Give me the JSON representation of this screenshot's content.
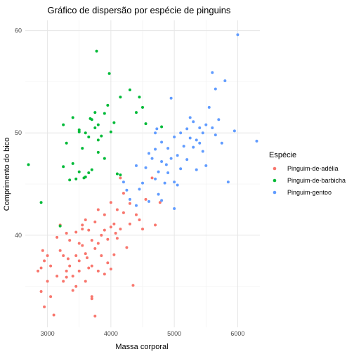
{
  "chart_data": {
    "type": "scatter",
    "title": "Gráfico de dispersão por espécie de pinguins",
    "xlabel": "Massa corporal",
    "ylabel": "Comprimento do bico",
    "xlim": [
      2650,
      6350
    ],
    "ylim": [
      31,
      61
    ],
    "x_ticks": [
      3000,
      4000,
      5000,
      6000
    ],
    "y_ticks": [
      40,
      50,
      60
    ],
    "grid": true,
    "legend": {
      "title": "Espécie",
      "placement": "right"
    },
    "series": [
      {
        "name": "Pinguim-de-adélia",
        "color": "#F8766D",
        "points": [
          [
            2850,
            36.5
          ],
          [
            2900,
            34.5
          ],
          [
            2900,
            36.8
          ],
          [
            2925,
            38.5
          ],
          [
            2950,
            37.5
          ],
          [
            3000,
            35.5
          ],
          [
            3000,
            38.0
          ],
          [
            3050,
            37.0
          ],
          [
            3050,
            34.0
          ],
          [
            2950,
            33.0
          ],
          [
            3100,
            32.2
          ],
          [
            3150,
            36.0
          ],
          [
            3200,
            38.5
          ],
          [
            3200,
            41.0
          ],
          [
            3250,
            38.0
          ],
          [
            3250,
            35.5
          ],
          [
            3300,
            36.5
          ],
          [
            3300,
            40.2
          ],
          [
            3350,
            39.5
          ],
          [
            3350,
            37.0
          ],
          [
            3400,
            34.6
          ],
          [
            3400,
            36.0
          ],
          [
            3450,
            38.0
          ],
          [
            3450,
            40.3
          ],
          [
            3500,
            37.5
          ],
          [
            3500,
            36.5
          ],
          [
            3550,
            39.0
          ],
          [
            3550,
            41.0
          ],
          [
            3600,
            38.2
          ],
          [
            3600,
            35.5
          ],
          [
            3650,
            40.5
          ],
          [
            3650,
            36.8
          ],
          [
            3700,
            39.5
          ],
          [
            3700,
            37.0
          ],
          [
            3700,
            34.0
          ],
          [
            3750,
            38.7
          ],
          [
            3750,
            41.3
          ],
          [
            3800,
            39.2
          ],
          [
            3800,
            36.5
          ],
          [
            3850,
            40.0
          ],
          [
            3850,
            38.0
          ],
          [
            3900,
            40.5
          ],
          [
            3900,
            42.0
          ],
          [
            3950,
            39.6
          ],
          [
            3950,
            37.3
          ],
          [
            4000,
            40.8
          ],
          [
            4000,
            43.2
          ],
          [
            4050,
            41.1
          ],
          [
            4050,
            38.1
          ],
          [
            4100,
            42.5
          ],
          [
            4100,
            39.7
          ],
          [
            4150,
            45.6
          ],
          [
            4150,
            40.6
          ],
          [
            4200,
            42.2
          ],
          [
            4250,
            38.8
          ],
          [
            4300,
            41.1
          ],
          [
            4300,
            43.1
          ],
          [
            4400,
            42.0
          ],
          [
            4450,
            41.5
          ],
          [
            4500,
            40.6
          ],
          [
            4550,
            43.5
          ],
          [
            4650,
            45.6
          ],
          [
            4700,
            41.0
          ],
          [
            4775,
            43.2
          ],
          [
            3700,
            33.8
          ],
          [
            3450,
            35.0
          ],
          [
            3750,
            32.1
          ],
          [
            3550,
            40.6
          ],
          [
            3300,
            35.9
          ],
          [
            3900,
            36.2
          ],
          [
            4200,
            44.1
          ],
          [
            3625,
            37.8
          ],
          [
            4000,
            36.7
          ],
          [
            3800,
            42.5
          ],
          [
            3500,
            39.2
          ],
          [
            4350,
            35.1
          ],
          [
            3325,
            37.7
          ],
          [
            3600,
            41.5
          ],
          [
            3150,
            39.8
          ],
          [
            4075,
            40.2
          ]
        ]
      },
      {
        "name": "Pinguim-de-barbicha",
        "color": "#00BA38",
        "points": [
          [
            2700,
            46.9
          ],
          [
            2900,
            43.2
          ],
          [
            3200,
            40.9
          ],
          [
            3250,
            46.7
          ],
          [
            3300,
            49.0
          ],
          [
            3350,
            45.4
          ],
          [
            3400,
            51.5
          ],
          [
            3400,
            47.0
          ],
          [
            3450,
            45.5
          ],
          [
            3500,
            50.3
          ],
          [
            3500,
            46.2
          ],
          [
            3550,
            48.5
          ],
          [
            3600,
            50.0
          ],
          [
            3600,
            45.7
          ],
          [
            3650,
            49.6
          ],
          [
            3650,
            46.1
          ],
          [
            3700,
            51.3
          ],
          [
            3700,
            46.4
          ],
          [
            3750,
            50.5
          ],
          [
            3750,
            52.0
          ],
          [
            3800,
            50.8
          ],
          [
            3800,
            48.1
          ],
          [
            3850,
            49.7
          ],
          [
            3900,
            51.9
          ],
          [
            3900,
            47.5
          ],
          [
            3950,
            52.7
          ],
          [
            4000,
            50.1
          ],
          [
            4050,
            51.0
          ],
          [
            4100,
            46.0
          ],
          [
            4150,
            53.5
          ],
          [
            4300,
            54.2
          ],
          [
            4400,
            52.0
          ],
          [
            4450,
            53.5
          ],
          [
            4500,
            52.5
          ],
          [
            4550,
            50.9
          ],
          [
            4800,
            50.6
          ],
          [
            3975,
            55.8
          ],
          [
            3775,
            58.0
          ],
          [
            3500,
            50.1
          ],
          [
            3250,
            50.8
          ],
          [
            3800,
            49.3
          ],
          [
            4150,
            45.9
          ],
          [
            3575,
            45.6
          ],
          [
            3675,
            51.4
          ]
        ]
      },
      {
        "name": "Pinguim-gentoo",
        "color": "#619CFF",
        "points": [
          [
            4200,
            45.2
          ],
          [
            4300,
            43.5
          ],
          [
            4400,
            46.8
          ],
          [
            4450,
            44.5
          ],
          [
            4500,
            45.1
          ],
          [
            4550,
            46.6
          ],
          [
            4600,
            43.3
          ],
          [
            4650,
            47.5
          ],
          [
            4700,
            45.5
          ],
          [
            4700,
            48.4
          ],
          [
            4750,
            44.0
          ],
          [
            4750,
            46.2
          ],
          [
            4800,
            47.2
          ],
          [
            4800,
            49.1
          ],
          [
            4850,
            45.1
          ],
          [
            4900,
            46.1
          ],
          [
            4950,
            47.5
          ],
          [
            5000,
            45.2
          ],
          [
            5000,
            49.6
          ],
          [
            5050,
            47.8
          ],
          [
            5100,
            50.0
          ],
          [
            5100,
            46.5
          ],
          [
            5150,
            48.7
          ],
          [
            5200,
            50.4
          ],
          [
            5200,
            47.4
          ],
          [
            5250,
            49.5
          ],
          [
            5300,
            51.1
          ],
          [
            5300,
            48.6
          ],
          [
            5350,
            46.4
          ],
          [
            5400,
            50.5
          ],
          [
            5400,
            49.0
          ],
          [
            5450,
            48.2
          ],
          [
            5500,
            50.8
          ],
          [
            5550,
            52.5
          ],
          [
            5600,
            50.5
          ],
          [
            5650,
            49.8
          ],
          [
            5700,
            51.3
          ],
          [
            5750,
            49.0
          ],
          [
            5800,
            55.1
          ],
          [
            5850,
            45.2
          ],
          [
            5950,
            50.2
          ],
          [
            6000,
            59.6
          ],
          [
            6300,
            49.2
          ],
          [
            5600,
            55.9
          ],
          [
            4400,
            42.9
          ],
          [
            4700,
            50.0
          ],
          [
            4950,
            53.4
          ],
          [
            5050,
            44.9
          ],
          [
            4875,
            46.9
          ],
          [
            5250,
            51.5
          ],
          [
            5450,
            50.0
          ],
          [
            4600,
            48.0
          ],
          [
            4800,
            43.4
          ],
          [
            4250,
            44.4
          ],
          [
            5650,
            54.3
          ],
          [
            5500,
            46.8
          ],
          [
            5000,
            42.6
          ],
          [
            4725,
            50.4
          ],
          [
            5350,
            49.3
          ],
          [
            4900,
            48.5
          ]
        ]
      }
    ]
  }
}
